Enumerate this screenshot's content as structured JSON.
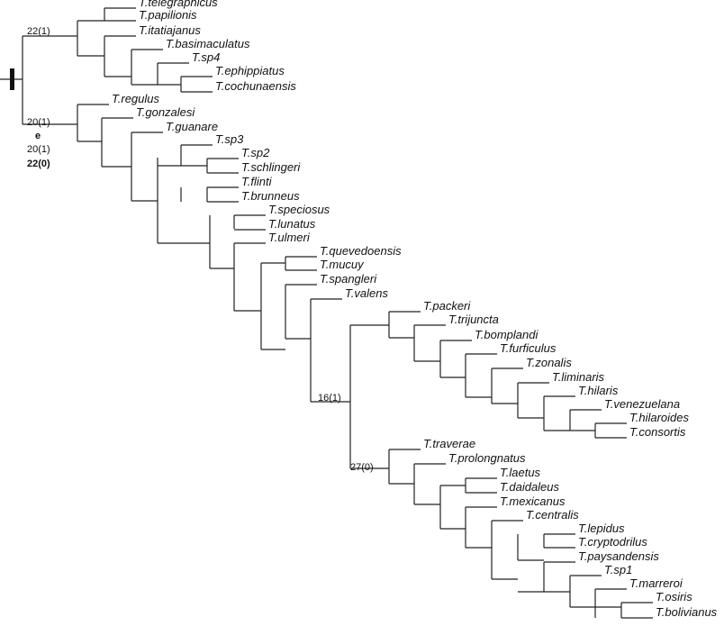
{
  "colors": {
    "line": "#222222",
    "text": "#111111",
    "background": "#ffffff"
  },
  "taxa": [
    "T.telegraphicus",
    "T.papilionis",
    "T.itatiajanus",
    "T.basimaculatus",
    "T.sp4",
    "T.ephippiatus",
    "T.cochunaensis",
    "T.regulus",
    "T.gonzalesi",
    "T.guanare",
    "T.sp3",
    "T.sp2",
    "T.schlingeri",
    "T.flinti",
    "T.brunneus",
    "T.speciosus",
    "T.lunatus",
    "T.ulmeri",
    "T.quevedoensis",
    "T.mucuy",
    "T.spangleri",
    "T.valens",
    "T.packeri",
    "T.trijuncta",
    "T.bomplandi",
    "T.furficulus",
    "T.zonalis",
    "T.liminaris",
    "T.hilaris",
    "T.venezuelana",
    "T.hilaroides",
    "T.consortis",
    "T.traverae",
    "T.prolongnatus",
    "T.laetus",
    "T.daidaleus",
    "T.mexicanus",
    "T.centralis",
    "T.lepidus",
    "T.cryptodrilus",
    "T.paysandensis",
    "T.sp1",
    "T.marreroi",
    "T.osiris",
    "T.bolivianus"
  ],
  "node_labels": [
    {
      "text": "22(1)"
    },
    {
      "text": "20(1)"
    },
    {
      "text": "e"
    },
    {
      "text": "20(1)"
    },
    {
      "text": "22(0)"
    },
    {
      "text": "16(1)"
    },
    {
      "text": "27(0)"
    }
  ]
}
